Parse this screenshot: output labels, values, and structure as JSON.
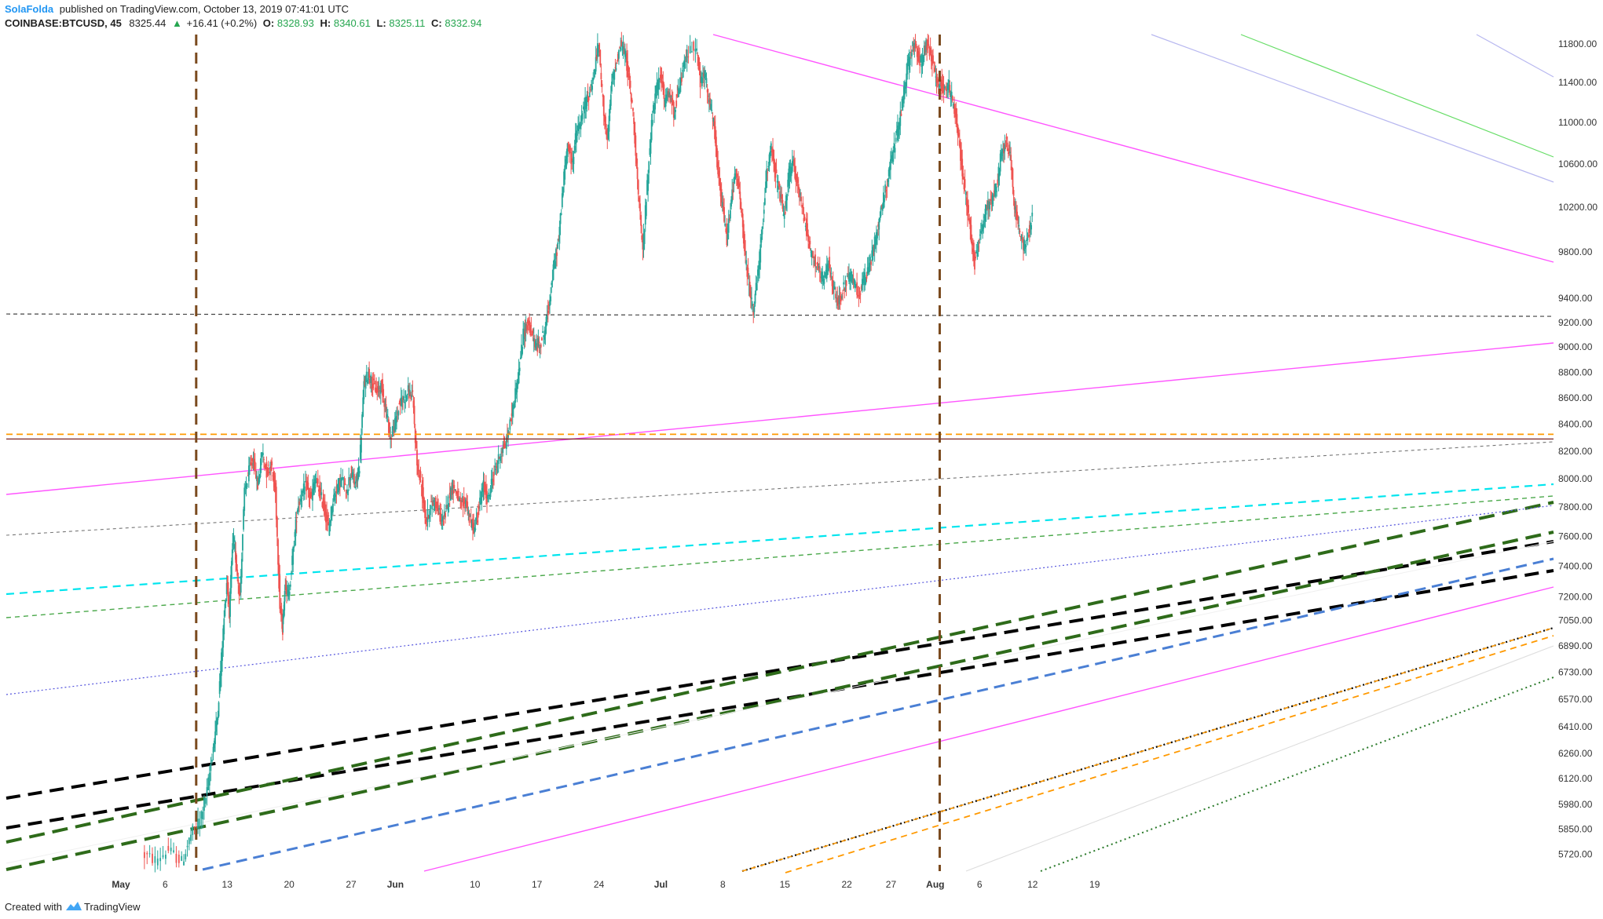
{
  "header": {
    "author": "SolaFolda",
    "published": "published on TradingView.com, October 13, 2019 07:41:01 UTC",
    "symbol": "COINBASE:BTCUSD, 45",
    "last": "8325.44",
    "change_arrow": "▲",
    "change": "+16.41 (+0.2%)",
    "o_label": "O:",
    "o_value": "8328.93",
    "h_label": "H:",
    "h_value": "8340.61",
    "l_label": "L:",
    "l_value": "8325.11",
    "c_label": "C:",
    "c_value": "8332.94"
  },
  "footer": {
    "created_with": "Created with",
    "brand": "TradingView"
  },
  "colors": {
    "up": "#26a69a",
    "down": "#ef5350",
    "positive": "#26a650",
    "author": "#2196f3",
    "brown": "#7a4a1e",
    "magenta": "#ff55ff",
    "cyan": "#00e5ee",
    "green_dash": "#2e6b1a",
    "black": "#000000",
    "blue": "#4a7fd4",
    "orange": "#ff9900",
    "purple": "#5555dd",
    "lavender": "#b8b8f0",
    "light_green": "#66dd66",
    "gray": "#777777",
    "light_gray": "#dddddd",
    "dotted_green": "#2a7a2a",
    "dark_red": "#7a2222"
  },
  "chart_data": {
    "type": "candlestick",
    "symbol": "COINBASE:BTCUSD",
    "interval": "45",
    "y_scale": "log",
    "ylim": [
      5650,
      11900
    ],
    "y_ticks": [
      11800.0,
      11400.0,
      11000.0,
      10600.0,
      10200.0,
      9800.0,
      9400.0,
      9200.0,
      9000.0,
      8800.0,
      8600.0,
      8400.0,
      8200.0,
      8000.0,
      7800.0,
      7600.0,
      7400.0,
      7200.0,
      7050.0,
      6890.0,
      6730.0,
      6570.0,
      6410.0,
      6260.0,
      6120.0,
      5980.0,
      5850.0,
      5720.0
    ],
    "y_tick_labels": [
      "11800.00",
      "11400.00",
      "11000.00",
      "10600.00",
      "10200.00",
      "9800.00",
      "9400.00",
      "9200.00",
      "9000.00",
      "8800.00",
      "8600.00",
      "8400.00",
      "8200.00",
      "8000.00",
      "7800.00",
      "7600.00",
      "7400.00",
      "7200.00",
      "7050.00",
      "6890.00",
      "6730.00",
      "6570.00",
      "6410.00",
      "6260.00",
      "6120.00",
      "5980.00",
      "5850.00",
      "5720.00"
    ],
    "x_ticks": [
      {
        "label": "May",
        "day": 0,
        "bold": true
      },
      {
        "label": "6",
        "day": 5
      },
      {
        "label": "13",
        "day": 12
      },
      {
        "label": "20",
        "day": 19
      },
      {
        "label": "27",
        "day": 26
      },
      {
        "label": "Jun",
        "day": 31,
        "bold": true
      },
      {
        "label": "10",
        "day": 40
      },
      {
        "label": "17",
        "day": 47
      },
      {
        "label": "24",
        "day": 54
      },
      {
        "label": "Jul",
        "day": 61,
        "bold": true
      },
      {
        "label": "8",
        "day": 68
      },
      {
        "label": "15",
        "day": 75
      },
      {
        "label": "22",
        "day": 82
      },
      {
        "label": "27",
        "day": 87
      },
      {
        "label": "Aug",
        "day": 92,
        "bold": true
      },
      {
        "label": "6",
        "day": 97
      },
      {
        "label": "12",
        "day": 103
      },
      {
        "label": "19",
        "day": 110
      }
    ],
    "price_path": [
      [
        2.5,
        5720
      ],
      [
        4,
        5690
      ],
      [
        5.5,
        5740
      ],
      [
        7,
        5680
      ],
      [
        8,
        5820
      ],
      [
        9,
        5900
      ],
      [
        9.8,
        6050
      ],
      [
        10.5,
        6300
      ],
      [
        11,
        6500
      ],
      [
        11.5,
        6900
      ],
      [
        12,
        7300
      ],
      [
        12.3,
        7100
      ],
      [
        12.7,
        7600
      ],
      [
        13,
        7450
      ],
      [
        13.5,
        7200
      ],
      [
        14,
        7900
      ],
      [
        14.5,
        8050
      ],
      [
        15,
        8150
      ],
      [
        15.5,
        7950
      ],
      [
        16,
        8200
      ],
      [
        16.5,
        8050
      ],
      [
        17,
        8100
      ],
      [
        17.5,
        7900
      ],
      [
        18,
        7150
      ],
      [
        18.3,
        7000
      ],
      [
        18.6,
        7300
      ],
      [
        19,
        7200
      ],
      [
        19.5,
        7500
      ],
      [
        20,
        7800
      ],
      [
        20.5,
        7900
      ],
      [
        21,
        7950
      ],
      [
        21.5,
        7850
      ],
      [
        22,
        8000
      ],
      [
        22.5,
        7900
      ],
      [
        23,
        7800
      ],
      [
        23.5,
        7650
      ],
      [
        24,
        7850
      ],
      [
        24.5,
        7950
      ],
      [
        25,
        8000
      ],
      [
        25.5,
        7900
      ],
      [
        26,
        8050
      ],
      [
        26.5,
        7950
      ],
      [
        27,
        8100
      ],
      [
        27.5,
        8700
      ],
      [
        28,
        8800
      ],
      [
        28.5,
        8700
      ],
      [
        29,
        8650
      ],
      [
        29.5,
        8700
      ],
      [
        30,
        8500
      ],
      [
        30.5,
        8300
      ],
      [
        31,
        8400
      ],
      [
        31.5,
        8550
      ],
      [
        32,
        8600
      ],
      [
        32.5,
        8650
      ],
      [
        33,
        8600
      ],
      [
        33.5,
        8100
      ],
      [
        34,
        7950
      ],
      [
        34.5,
        7700
      ],
      [
        35,
        7800
      ],
      [
        35.5,
        7850
      ],
      [
        36,
        7750
      ],
      [
        36.5,
        7700
      ],
      [
        37,
        7850
      ],
      [
        37.5,
        7950
      ],
      [
        38,
        7900
      ],
      [
        38.5,
        7800
      ],
      [
        39,
        7850
      ],
      [
        39.5,
        7700
      ],
      [
        40,
        7650
      ],
      [
        40.5,
        7800
      ],
      [
        41,
        7950
      ],
      [
        41.5,
        7850
      ],
      [
        42,
        8000
      ],
      [
        42.5,
        8100
      ],
      [
        43,
        8200
      ],
      [
        43.5,
        8250
      ],
      [
        44,
        8400
      ],
      [
        44.5,
        8600
      ],
      [
        45,
        8800
      ],
      [
        45.5,
        9100
      ],
      [
        46,
        9200
      ],
      [
        46.5,
        9100
      ],
      [
        47,
        9000
      ],
      [
        47.5,
        9050
      ],
      [
        48,
        9150
      ],
      [
        48.5,
        9400
      ],
      [
        49,
        9700
      ],
      [
        49.5,
        9900
      ],
      [
        50,
        10400
      ],
      [
        50.5,
        10800
      ],
      [
        51,
        10600
      ],
      [
        51.5,
        10900
      ],
      [
        52,
        11000
      ],
      [
        52.5,
        11200
      ],
      [
        53,
        11300
      ],
      [
        53.5,
        11500
      ],
      [
        54,
        11800
      ],
      [
        54.5,
        11200
      ],
      [
        55,
        10800
      ],
      [
        55.5,
        11400
      ],
      [
        56,
        11600
      ],
      [
        56.5,
        11800
      ],
      [
        57,
        11700
      ],
      [
        57.5,
        11400
      ],
      [
        58,
        11000
      ],
      [
        58.5,
        10300
      ],
      [
        59,
        9800
      ],
      [
        59.5,
        10400
      ],
      [
        60,
        11000
      ],
      [
        60.5,
        11300
      ],
      [
        61,
        11500
      ],
      [
        61.5,
        11200
      ],
      [
        62,
        11300
      ],
      [
        62.5,
        11100
      ],
      [
        63,
        11300
      ],
      [
        63.5,
        11500
      ],
      [
        64,
        11700
      ],
      [
        65,
        11800
      ],
      [
        65.5,
        11400
      ],
      [
        66,
        11500
      ],
      [
        66.5,
        11200
      ],
      [
        67,
        11000
      ],
      [
        67.5,
        10500
      ],
      [
        68,
        10200
      ],
      [
        68.5,
        9900
      ],
      [
        69,
        10300
      ],
      [
        69.5,
        10500
      ],
      [
        70,
        10300
      ],
      [
        70.5,
        9800
      ],
      [
        71,
        9500
      ],
      [
        71.5,
        9300
      ],
      [
        72,
        9600
      ],
      [
        72.5,
        10000
      ],
      [
        73,
        10500
      ],
      [
        73.5,
        10800
      ],
      [
        74,
        10500
      ],
      [
        74.5,
        10300
      ],
      [
        75,
        10100
      ],
      [
        75.5,
        10500
      ],
      [
        76,
        10600
      ],
      [
        76.5,
        10400
      ],
      [
        77,
        10200
      ],
      [
        77.5,
        10000
      ],
      [
        78,
        9800
      ],
      [
        78.5,
        9700
      ],
      [
        79,
        9600
      ],
      [
        79.5,
        9550
      ],
      [
        80,
        9700
      ],
      [
        80.5,
        9500
      ],
      [
        81,
        9350
      ],
      [
        81.5,
        9450
      ],
      [
        82,
        9550
      ],
      [
        82.5,
        9600
      ],
      [
        83,
        9500
      ],
      [
        83.5,
        9450
      ],
      [
        84,
        9550
      ],
      [
        84.5,
        9650
      ],
      [
        85,
        9800
      ],
      [
        85.5,
        10000
      ],
      [
        86,
        10200
      ],
      [
        86.5,
        10400
      ],
      [
        87,
        10600
      ],
      [
        87.5,
        10800
      ],
      [
        88,
        11000
      ],
      [
        88.5,
        11300
      ],
      [
        89,
        11600
      ],
      [
        89.5,
        11800
      ],
      [
        90,
        11700
      ],
      [
        90.5,
        11600
      ],
      [
        91,
        11800
      ],
      [
        91.5,
        11700
      ],
      [
        92,
        11500
      ],
      [
        92.5,
        11400
      ],
      [
        93,
        11300
      ],
      [
        93.5,
        11400
      ],
      [
        94,
        11200
      ],
      [
        94.5,
        11000
      ],
      [
        95,
        10600
      ],
      [
        95.5,
        10300
      ],
      [
        96,
        10000
      ],
      [
        96.5,
        9700
      ],
      [
        97,
        9900
      ],
      [
        97.5,
        10100
      ],
      [
        98,
        10200
      ],
      [
        98.5,
        10300
      ],
      [
        99,
        10400
      ],
      [
        99.5,
        10700
      ],
      [
        100,
        10800
      ],
      [
        100.5,
        10700
      ],
      [
        101,
        10200
      ],
      [
        101.5,
        10000
      ],
      [
        102,
        9850
      ],
      [
        102.5,
        9950
      ],
      [
        103,
        10100
      ]
    ],
    "annotations": {
      "vertical_lines_day": [
        8.5,
        92.5
      ],
      "horizontal_levels": [
        9270,
        8325,
        8290
      ]
    }
  }
}
